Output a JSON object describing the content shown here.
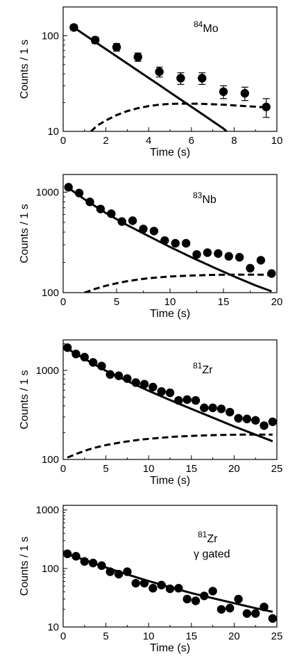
{
  "chart_data": [
    {
      "type": "scatter",
      "ylog": true,
      "xlim": [
        0,
        10
      ],
      "ylim": [
        10,
        200
      ],
      "xticks": [
        0,
        2,
        4,
        6,
        8,
        10
      ],
      "yticks": [
        10,
        100
      ],
      "xlabel": "Time (s)",
      "ylabel": "Counts / 1 s",
      "annotation": {
        "mass": "84",
        "element": "Mo",
        "extra": ""
      },
      "series": [
        {
          "kind": "points",
          "errorbars": true,
          "x": [
            0.5,
            1.5,
            2.5,
            3.5,
            4.5,
            5.5,
            6.5,
            7.5,
            8.5,
            9.5
          ],
          "y": [
            122,
            90,
            76,
            60,
            42,
            36,
            36,
            26,
            25,
            18
          ],
          "yerr": [
            8,
            7,
            7,
            6,
            5,
            5,
            5,
            4,
            4,
            4
          ]
        },
        {
          "kind": "solid",
          "x": [
            0.5,
            1.5,
            2.5,
            3.5,
            4.5,
            5.5,
            6.5,
            7.5,
            7.65
          ],
          "y": [
            122,
            86,
            61,
            43,
            30.5,
            21.5,
            15.2,
            10.7,
            10
          ]
        },
        {
          "kind": "dashed",
          "x": [
            1.3,
            1.6,
            2,
            2.5,
            3,
            3.5,
            4,
            4.5,
            5,
            5.5,
            6,
            6.5,
            7,
            7.5,
            8,
            8.5,
            9,
            9.5
          ],
          "y": [
            10,
            11.5,
            13,
            14.8,
            16.3,
            17.5,
            18.4,
            19,
            19.4,
            19.5,
            19.5,
            19.4,
            19.2,
            19,
            18.7,
            18.4,
            18.1,
            17.8
          ]
        }
      ]
    },
    {
      "type": "scatter",
      "ylog": true,
      "xlim": [
        0,
        20
      ],
      "ylim": [
        100,
        1500
      ],
      "xticks": [
        0,
        5,
        10,
        15,
        20
      ],
      "yticks": [
        100,
        1000
      ],
      "xlabel": "Time (s)",
      "ylabel": "Counts / 1 s",
      "annotation": {
        "mass": "83",
        "element": "Nb",
        "extra": ""
      },
      "series": [
        {
          "kind": "points",
          "errorbars": false,
          "x": [
            0.5,
            1.5,
            2.5,
            3.5,
            4.5,
            5.5,
            6.5,
            7.5,
            8.5,
            9.5,
            10.5,
            11.5,
            12.5,
            13.5,
            14.5,
            15.5,
            16.5,
            17.5,
            18.5,
            19.5
          ],
          "y": [
            1120,
            980,
            800,
            680,
            610,
            510,
            520,
            430,
            410,
            330,
            310,
            310,
            240,
            250,
            245,
            230,
            225,
            175,
            210,
            155
          ]
        },
        {
          "kind": "solid",
          "x": [
            0.5,
            2,
            4,
            6,
            8,
            10,
            12,
            14,
            16,
            18,
            19.5
          ],
          "y": [
            1100,
            850,
            620,
            470,
            365,
            285,
            225,
            180,
            145,
            118,
            103
          ]
        },
        {
          "kind": "dashed",
          "x": [
            2,
            3,
            4,
            5,
            6,
            7,
            8,
            9,
            10,
            12,
            14,
            16,
            18,
            19.5
          ],
          "y": [
            100,
            109,
            117,
            124,
            130,
            135,
            139,
            142,
            145,
            148,
            150,
            151,
            151,
            150
          ]
        }
      ]
    },
    {
      "type": "scatter",
      "ylog": true,
      "xlim": [
        0,
        25
      ],
      "ylim": [
        100,
        2200
      ],
      "xticks": [
        0,
        5,
        10,
        15,
        20,
        25
      ],
      "yticks": [
        100,
        1000
      ],
      "xlabel": "Time (s)",
      "ylabel": "Counts / 1 s",
      "annotation": {
        "mass": "81",
        "element": "Zr",
        "extra": ""
      },
      "series": [
        {
          "kind": "points",
          "errorbars": false,
          "x": [
            0.5,
            1.5,
            2.5,
            3.5,
            4.5,
            5.5,
            6.5,
            7.5,
            8.5,
            9.5,
            10.5,
            11.5,
            12.5,
            13.5,
            14.5,
            15.5,
            16.5,
            17.5,
            18.5,
            19.5,
            20.5,
            21.5,
            22.5,
            23.5,
            24.5
          ],
          "y": [
            1800,
            1530,
            1410,
            1230,
            1120,
            900,
            870,
            810,
            730,
            700,
            650,
            580,
            560,
            460,
            470,
            460,
            380,
            380,
            370,
            340,
            290,
            285,
            275,
            240,
            265
          ]
        },
        {
          "kind": "solid",
          "x": [
            0.5,
            2.5,
            5,
            7.5,
            10,
            12.5,
            15,
            17.5,
            20,
            22.5,
            24.5
          ],
          "y": [
            1750,
            1350,
            990,
            760,
            590,
            465,
            370,
            295,
            235,
            190,
            160
          ]
        },
        {
          "kind": "dashed",
          "x": [
            0.5,
            1.5,
            2.5,
            3.5,
            5,
            7,
            9,
            11,
            13,
            15,
            17,
            19,
            21,
            23,
            24.5
          ],
          "y": [
            105,
            115,
            125,
            134,
            145,
            157,
            167,
            174,
            180,
            184,
            187,
            189,
            190,
            190,
            190
          ]
        }
      ]
    },
    {
      "type": "scatter",
      "ylog": true,
      "xlim": [
        0,
        25
      ],
      "ylim": [
        10,
        1200
      ],
      "xticks": [
        0,
        5,
        10,
        15,
        20,
        25
      ],
      "yticks": [
        10,
        100,
        1000
      ],
      "xlabel": "Time (s)",
      "ylabel": "Counts / 1 s",
      "annotation": {
        "mass": "81",
        "element": "Zr",
        "extra": "γ gated"
      },
      "series": [
        {
          "kind": "points",
          "errorbars": false,
          "x": [
            0.5,
            1.5,
            2.5,
            3.5,
            4.5,
            5.5,
            6.5,
            7.5,
            8.5,
            9.5,
            10.5,
            11.5,
            12.5,
            13.5,
            14.5,
            15.5,
            16.5,
            17.5,
            18.5,
            19.5,
            20.5,
            21.5,
            22.5,
            23.5,
            24.5
          ],
          "y": [
            178,
            162,
            132,
            124,
            112,
            88,
            80,
            88,
            56,
            56,
            46,
            52,
            45,
            46,
            30,
            28,
            34,
            41,
            20,
            21,
            30,
            17,
            17,
            22,
            14
          ]
        },
        {
          "kind": "solid",
          "x": [
            0.5,
            2.5,
            5,
            7.5,
            10,
            12.5,
            15,
            17.5,
            20,
            22.5,
            24.5
          ],
          "y": [
            175,
            140,
            104,
            79,
            61,
            48,
            38,
            31,
            25.5,
            21,
            18.2
          ]
        }
      ]
    }
  ]
}
